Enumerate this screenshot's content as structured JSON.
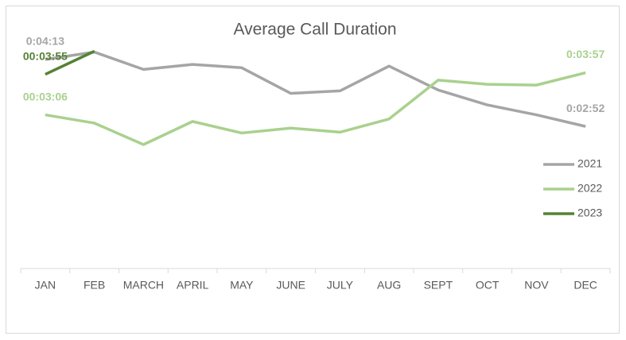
{
  "chart_data": {
    "type": "line",
    "title": "Average Call Duration",
    "categories": [
      "JAN",
      "FEB",
      "MARCH",
      "APRIL",
      "MAY",
      "JUNE",
      "JULY",
      "AUG",
      "SEPT",
      "OCT",
      "NOV",
      "DEC"
    ],
    "ylim": [
      0,
      300
    ],
    "legend": "right",
    "series": [
      {
        "name": "2021",
        "color": "#a5a5a5",
        "values": [
          253,
          262,
          241,
          247,
          243,
          212,
          215,
          245,
          216,
          198,
          186,
          172
        ],
        "value_labels": [
          "0:04:13",
          null,
          null,
          null,
          null,
          null,
          null,
          null,
          null,
          null,
          null,
          "0:02:52"
        ]
      },
      {
        "name": "2022",
        "color": "#a9d18e",
        "values": [
          186,
          176,
          150,
          178,
          164,
          170,
          165,
          181,
          228,
          223,
          222,
          237
        ],
        "value_labels": [
          "00:03:06",
          null,
          null,
          null,
          null,
          null,
          null,
          null,
          null,
          null,
          null,
          "0:03:57"
        ]
      },
      {
        "name": "2023",
        "color": "#548235",
        "values": [
          235,
          263,
          null,
          null,
          null,
          null,
          null,
          null,
          null,
          null,
          null,
          null
        ],
        "value_labels": [
          "00:03:55",
          null,
          null,
          null,
          null,
          null,
          null,
          null,
          null,
          null,
          null,
          null
        ]
      }
    ]
  }
}
